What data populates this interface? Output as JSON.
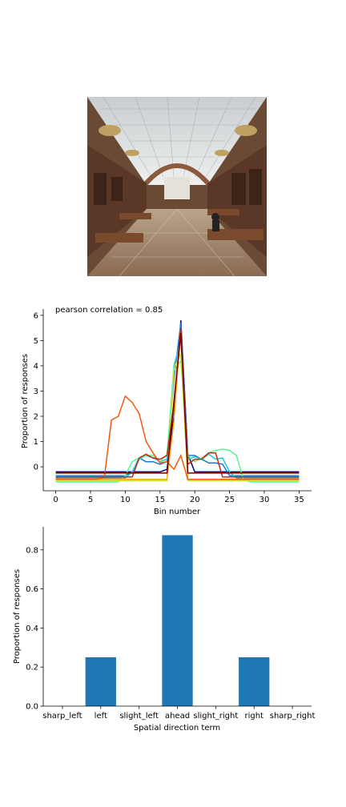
{
  "image": {
    "description_icon": "library-reading-room-photo"
  },
  "chart_data": [
    {
      "type": "line",
      "title": "pearson correlation = 0.85",
      "xlabel": "Bin number",
      "ylabel": "Proportion of responses",
      "xlim": [
        -1.8,
        36.8
      ],
      "ylim": [
        -0.95,
        6.25
      ],
      "xticks": [
        0,
        5,
        10,
        15,
        20,
        25,
        30,
        35
      ],
      "yticks": [
        0,
        1,
        2,
        3,
        4,
        5,
        6
      ],
      "grid": false,
      "colormap": "jet",
      "series": [
        {
          "color": "#00008f",
          "values": [
            -0.2,
            -0.2,
            -0.2,
            -0.2,
            -0.2,
            -0.2,
            -0.2,
            -0.2,
            -0.2,
            -0.2,
            -0.2,
            -0.2,
            -0.2,
            -0.2,
            -0.2,
            -0.2,
            -0.1,
            2.0,
            5.8,
            0.5,
            -0.2,
            -0.2,
            -0.2,
            -0.2,
            -0.2,
            -0.2,
            -0.2,
            -0.2,
            -0.2,
            -0.2,
            -0.2,
            -0.2,
            -0.2,
            -0.2,
            -0.2,
            -0.2
          ]
        },
        {
          "color": "#1f77d4",
          "values": [
            -0.35,
            -0.35,
            -0.35,
            -0.35,
            -0.35,
            -0.35,
            -0.35,
            -0.35,
            -0.35,
            -0.35,
            -0.35,
            -0.2,
            0.35,
            0.2,
            0.2,
            0.1,
            0.2,
            3.5,
            5.7,
            0.45,
            0.45,
            0.3,
            0.15,
            0.15,
            0.1,
            -0.35,
            -0.35,
            -0.35,
            -0.35,
            -0.35,
            -0.35,
            -0.35,
            -0.35,
            -0.35,
            -0.35,
            -0.35
          ]
        },
        {
          "color": "#19c9d6",
          "values": [
            -0.45,
            -0.45,
            -0.45,
            -0.45,
            -0.45,
            -0.45,
            -0.45,
            -0.45,
            -0.45,
            -0.45,
            -0.45,
            -0.2,
            0.3,
            0.45,
            0.35,
            0.2,
            0.3,
            4.0,
            5.0,
            0.3,
            0.4,
            0.3,
            0.5,
            0.3,
            0.35,
            -0.2,
            -0.45,
            -0.45,
            -0.45,
            -0.45,
            -0.45,
            -0.45,
            -0.45,
            -0.45,
            -0.45,
            -0.45
          ]
        },
        {
          "color": "#5cf58e",
          "values": [
            -0.6,
            -0.6,
            -0.6,
            -0.6,
            -0.6,
            -0.6,
            -0.6,
            -0.6,
            -0.6,
            -0.6,
            -0.35,
            0.2,
            0.35,
            0.45,
            0.45,
            0.2,
            0.5,
            3.8,
            4.2,
            0.45,
            0.2,
            0.35,
            0.55,
            0.65,
            0.7,
            0.65,
            0.45,
            -0.5,
            -0.6,
            -0.6,
            -0.6,
            -0.6,
            -0.6,
            -0.6,
            -0.6,
            -0.6
          ]
        },
        {
          "color": "#c6e62f",
          "values": [
            -0.55,
            -0.55,
            -0.55,
            -0.55,
            -0.55,
            -0.55,
            -0.55,
            -0.55,
            -0.55,
            -0.55,
            -0.55,
            -0.55,
            -0.55,
            -0.55,
            -0.55,
            -0.55,
            -0.55,
            3.9,
            4.5,
            -0.55,
            -0.55,
            -0.55,
            -0.55,
            -0.55,
            -0.55,
            -0.55,
            -0.55,
            -0.55,
            -0.55,
            -0.55,
            -0.55,
            -0.55,
            -0.55,
            -0.55,
            -0.55,
            -0.55
          ]
        },
        {
          "color": "#f5a623",
          "values": [
            -0.5,
            -0.5,
            -0.5,
            -0.5,
            -0.5,
            -0.5,
            -0.5,
            -0.5,
            -0.5,
            -0.5,
            -0.5,
            -0.5,
            -0.5,
            -0.5,
            -0.5,
            -0.5,
            -0.5,
            1.8,
            5.5,
            -0.5,
            -0.5,
            -0.5,
            -0.5,
            -0.5,
            -0.5,
            -0.5,
            -0.5,
            -0.5,
            -0.5,
            -0.5,
            -0.5,
            -0.5,
            -0.5,
            -0.5,
            -0.5,
            -0.5
          ]
        },
        {
          "color": "#f05a14",
          "values": [
            -0.5,
            -0.5,
            -0.5,
            -0.5,
            -0.5,
            -0.5,
            -0.5,
            -0.4,
            1.85,
            2.0,
            2.8,
            2.55,
            2.1,
            1.0,
            0.55,
            0.15,
            0.2,
            -0.1,
            0.45,
            -0.5,
            -0.5,
            -0.5,
            -0.5,
            -0.5,
            -0.5,
            -0.5,
            -0.5,
            -0.5,
            -0.5,
            -0.5,
            -0.5,
            -0.5,
            -0.5,
            -0.5,
            -0.5,
            -0.5
          ]
        },
        {
          "color": "#c42a10",
          "values": [
            -0.4,
            -0.4,
            -0.4,
            -0.4,
            -0.4,
            -0.4,
            -0.4,
            -0.4,
            -0.4,
            -0.4,
            -0.4,
            -0.4,
            0.35,
            0.5,
            0.35,
            0.3,
            0.45,
            2.5,
            5.5,
            0.1,
            0.3,
            0.3,
            0.55,
            0.55,
            -0.4,
            -0.4,
            -0.4,
            -0.4,
            -0.4,
            -0.4,
            -0.4,
            -0.4,
            -0.4,
            -0.4,
            -0.4,
            -0.4
          ]
        },
        {
          "color": "#7a0000",
          "values": [
            -0.25,
            -0.25,
            -0.25,
            -0.25,
            -0.25,
            -0.25,
            -0.25,
            -0.25,
            -0.25,
            -0.25,
            -0.25,
            -0.25,
            -0.25,
            -0.25,
            -0.25,
            -0.25,
            -0.25,
            2.6,
            5.3,
            -0.25,
            -0.25,
            -0.25,
            -0.25,
            -0.25,
            -0.25,
            -0.25,
            -0.25,
            -0.25,
            -0.25,
            -0.25,
            -0.25,
            -0.25,
            -0.25,
            -0.25,
            -0.25,
            -0.25
          ]
        }
      ]
    },
    {
      "type": "bar",
      "title": "",
      "xlabel": "Spatial direction term",
      "ylabel": "Proportion of responses",
      "categories": [
        "sharp_left",
        "left",
        "slight_left",
        "ahead",
        "slight_right",
        "right",
        "sharp_right"
      ],
      "values": [
        0.0,
        0.25,
        0.0,
        0.875,
        0.0,
        0.25,
        0.0
      ],
      "ylim": [
        0,
        0.918
      ],
      "yticks": [
        0.0,
        0.2,
        0.4,
        0.6,
        0.8
      ],
      "ytick_labels": [
        "0.0",
        "0.2",
        "0.4",
        "0.6",
        "0.8"
      ],
      "color": "#1f77b4",
      "grid": false
    }
  ]
}
